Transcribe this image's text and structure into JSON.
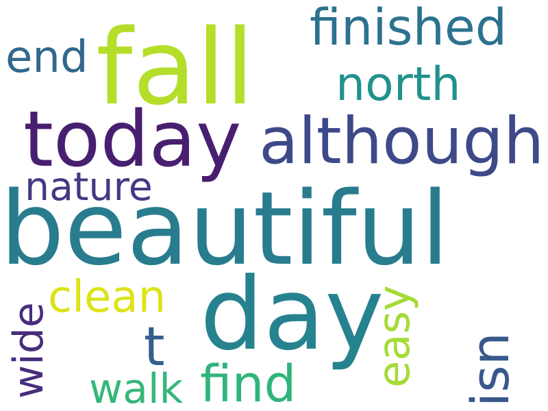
{
  "words": [
    {
      "key": "fall",
      "text": "fall",
      "color": "#b5de2b"
    },
    {
      "key": "finished",
      "text": "finished",
      "color": "#2c728e"
    },
    {
      "key": "end",
      "text": "end",
      "color": "#31688e"
    },
    {
      "key": "north",
      "text": "north",
      "color": "#21918c"
    },
    {
      "key": "today",
      "text": "today",
      "color": "#481f70"
    },
    {
      "key": "although",
      "text": "although",
      "color": "#3e4989"
    },
    {
      "key": "nature",
      "text": "nature",
      "color": "#443983"
    },
    {
      "key": "beautiful",
      "text": "beautiful",
      "color": "#287c8e"
    },
    {
      "key": "day",
      "text": "day",
      "color": "#26828e"
    },
    {
      "key": "clean",
      "text": "clean",
      "color": "#dde318"
    },
    {
      "key": "wide",
      "text": "wide",
      "color": "#472d7b"
    },
    {
      "key": "t",
      "text": "t",
      "color": "#355f8d"
    },
    {
      "key": "easy",
      "text": "easy",
      "color": "#a5db36"
    },
    {
      "key": "isn",
      "text": "isn",
      "color": "#38588c"
    },
    {
      "key": "walk",
      "text": "walk",
      "color": "#35b779"
    },
    {
      "key": "find",
      "text": "find",
      "color": "#2fb47c"
    }
  ]
}
